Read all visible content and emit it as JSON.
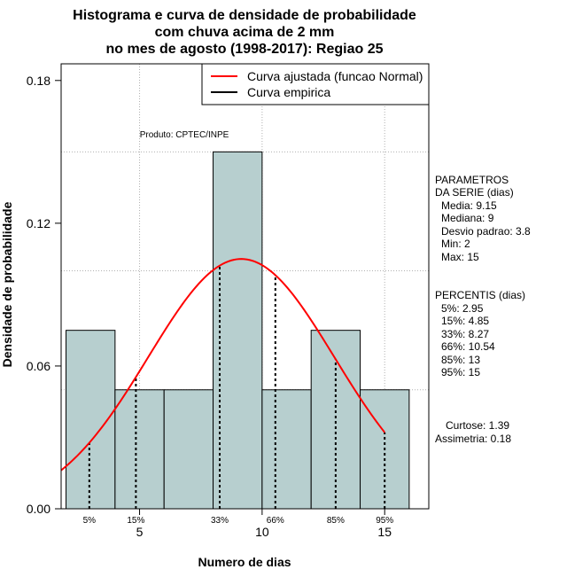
{
  "chart_data": {
    "type": "bar",
    "title_lines": [
      "Histograma e curva de densidade de probabilidade",
      "com chuva acima de 2 mm",
      "no mes de agosto (1998-2017): Regiao 25"
    ],
    "xlabel": "Numero de dias",
    "ylabel": "Densidade de probabilidade",
    "xlim": [
      1.8,
      16.8
    ],
    "ylim": [
      0,
      0.187
    ],
    "xticks": [
      5,
      10,
      15
    ],
    "yticks": [
      0.0,
      0.06,
      0.12,
      0.18
    ],
    "ytick_labels": [
      "0.00",
      "0.06",
      "0.12",
      "0.18"
    ],
    "grid_y": [
      0.05,
      0.1,
      0.15
    ],
    "grid_x": [
      5,
      10,
      15
    ],
    "bins": [
      {
        "start": 2,
        "end": 4,
        "density": 0.075
      },
      {
        "start": 4,
        "end": 6,
        "density": 0.05
      },
      {
        "start": 6,
        "end": 8,
        "density": 0.05
      },
      {
        "start": 8,
        "end": 10,
        "density": 0.15
      },
      {
        "start": 10,
        "end": 12,
        "density": 0.05
      },
      {
        "start": 12,
        "end": 14,
        "density": 0.075
      },
      {
        "start": 14,
        "end": 16,
        "density": 0.05
      }
    ],
    "bar_color": "#b7cfcf",
    "curve_color": "#ff0000",
    "normal_curve": {
      "mean": 9.15,
      "sd": 3.8,
      "x_range": [
        1.8,
        15
      ]
    },
    "percentiles": [
      {
        "label": "5%",
        "x": 2.95
      },
      {
        "label": "15%",
        "x": 4.85
      },
      {
        "label": "33%",
        "x": 8.27
      },
      {
        "label": "66%",
        "x": 10.54
      },
      {
        "label": "85%",
        "x": 13
      },
      {
        "label": "95%",
        "x": 15
      }
    ],
    "legend": {
      "position": "top-right",
      "entries": [
        {
          "label": "Curva ajustada (funcao Normal)",
          "color": "#ff0000"
        },
        {
          "label": "Curva empirica",
          "color": "#000000"
        }
      ]
    },
    "annotation": "Produto: CPTEC/INPE"
  },
  "side_panel": {
    "params_title": [
      "PARAMETROS",
      "DA SERIE (dias)"
    ],
    "params": [
      "Media: 9.15",
      "Mediana: 9",
      "Desvio padrao: 3.8",
      "Min: 2",
      "Max: 15"
    ],
    "perc_title": "PERCENTIS (dias)",
    "perc": [
      "5%: 2.95",
      "15%: 4.85",
      "33%: 8.27",
      "66%: 10.54",
      "85%: 13",
      "95%: 15"
    ],
    "curtose": "Curtose: 1.39",
    "assimetria": "Assimetria: 0.18"
  }
}
